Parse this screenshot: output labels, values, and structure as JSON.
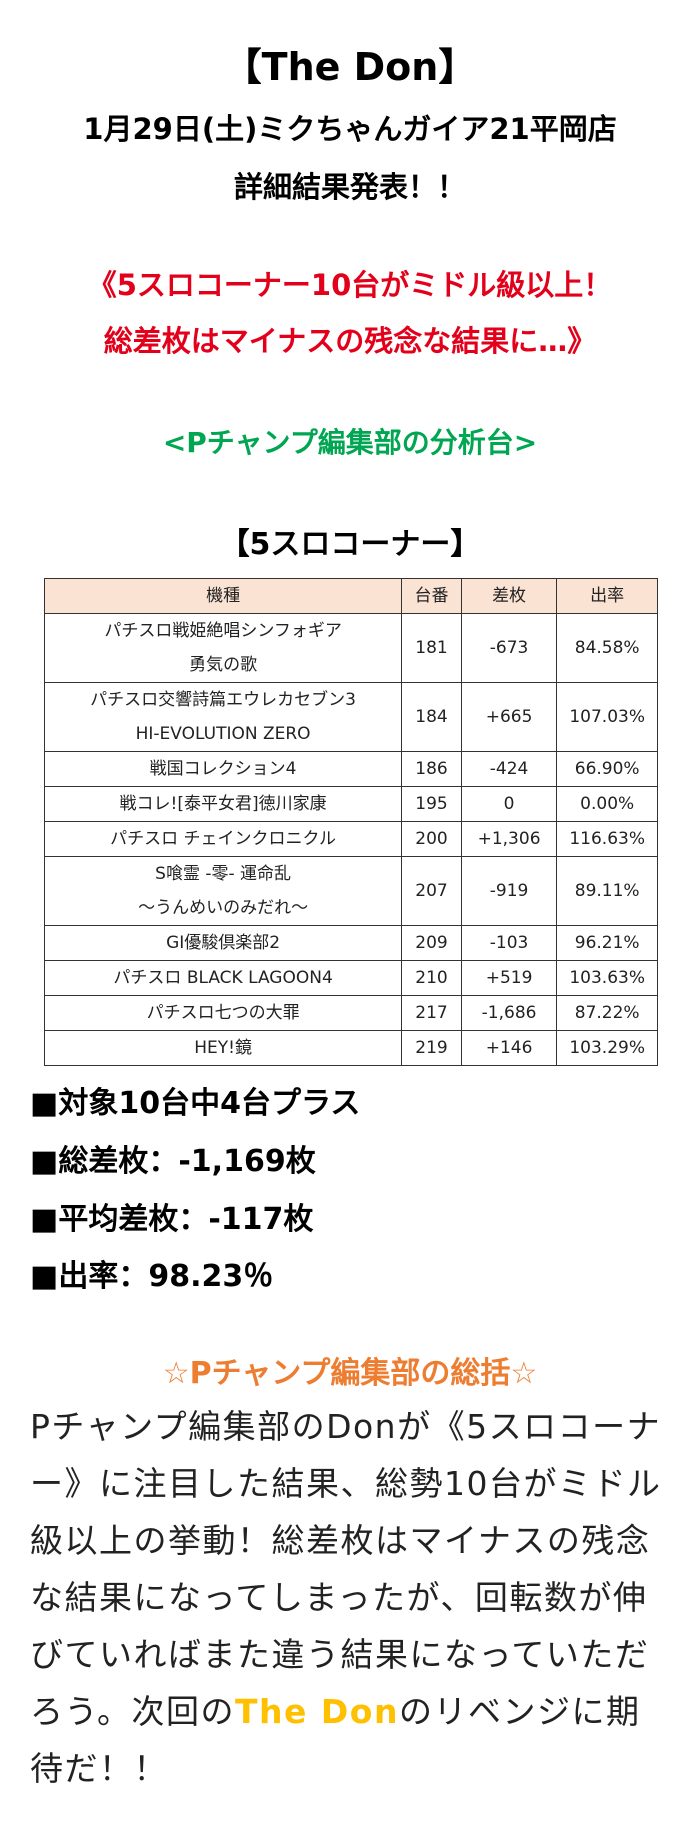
{
  "header": {
    "title": "【The Don】",
    "date_store": "1月29日(土)ミクちゃんガイア21平岡店",
    "announcement": "詳細結果発表！！"
  },
  "headline": [
    "《5スロコーナー10台がミドル級以上！",
    "総差枚はマイナスの残念な結果に…》"
  ],
  "analysis_label": "<Pチャンプ編集部の分析台>",
  "section_title": "【5スロコーナー】",
  "table": {
    "columns": [
      "機種",
      "台番",
      "差枚",
      "出率"
    ],
    "rows": [
      [
        [
          "パチスロ戦姫絶唱シンフォギア",
          "勇気の歌"
        ],
        "181",
        "-673",
        "84.58%"
      ],
      [
        [
          "パチスロ交響詩篇エウレカセブン3",
          "HI-EVOLUTION ZERO"
        ],
        "184",
        "+665",
        "107.03%"
      ],
      [
        [
          "戦国コレクション4"
        ],
        "186",
        "-424",
        "66.90%"
      ],
      [
        [
          "戦コレ![泰平女君]徳川家康"
        ],
        "195",
        "0",
        "0.00%"
      ],
      [
        [
          "パチスロ チェインクロニクル"
        ],
        "200",
        "+1,306",
        "116.63%"
      ],
      [
        [
          "S喰霊 -零- 運命乱",
          "～うんめいのみだれ～"
        ],
        "207",
        "-919",
        "89.11%"
      ],
      [
        [
          "GI優駿倶楽部2"
        ],
        "209",
        "-103",
        "96.21%"
      ],
      [
        [
          "パチスロ BLACK LAGOON4"
        ],
        "210",
        "+519",
        "103.63%"
      ],
      [
        [
          "パチスロ七つの大罪"
        ],
        "217",
        "-1,686",
        "87.22%"
      ],
      [
        [
          "HEY!鏡"
        ],
        "219",
        "+146",
        "103.29%"
      ]
    ]
  },
  "summary": [
    "■対象10台中4台プラス",
    "■総差枚：-1,169枚",
    "■平均差枚：-117枚",
    "■出率：98.23％"
  ],
  "review": {
    "title": "☆Pチャンプ編集部の総括☆",
    "text_before": "Pチャンプ編集部のDonが《5スロコーナー》に注目した結果、総勢10台がミドル級以上の挙動！総差枚はマイナスの残念な結果になってしまったが、回転数が伸びていればまた違う結果になっていただろう。次回の",
    "highlight": "The Don",
    "text_after": "のリベンジに期待だ！！"
  }
}
